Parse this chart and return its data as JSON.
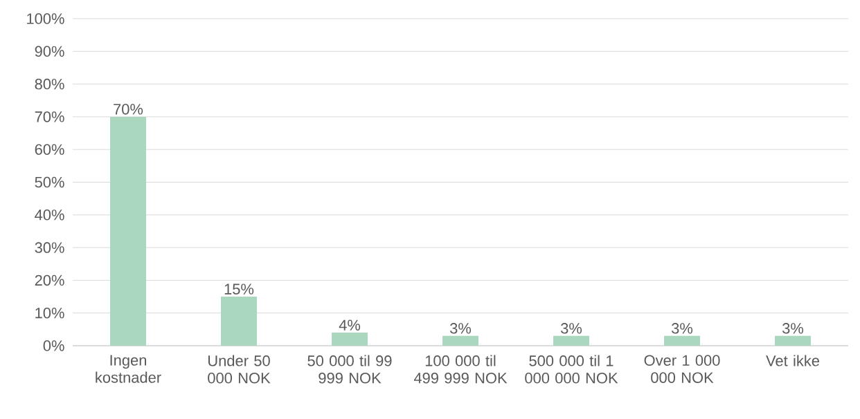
{
  "chart_data": {
    "type": "bar",
    "categories": [
      "Ingen kostnader",
      "Under 50 000 NOK",
      "50 000 til 99 999 NOK",
      "100 000 til 499 999 NOK",
      "500 000 til 1 000 000 NOK",
      "Over 1 000 000 NOK",
      "Vet ikke"
    ],
    "values": [
      70,
      15,
      4,
      3,
      3,
      3,
      3
    ],
    "value_labels": [
      "70%",
      "15%",
      "4%",
      "3%",
      "3%",
      "3%",
      "3%"
    ],
    "color": "#a9d8bf",
    "ylim": [
      0,
      100
    ],
    "yticks": [
      {
        "value": 0,
        "label": "0%"
      },
      {
        "value": 10,
        "label": "10%"
      },
      {
        "value": 20,
        "label": "20%"
      },
      {
        "value": 30,
        "label": "30%"
      },
      {
        "value": 40,
        "label": "40%"
      },
      {
        "value": 50,
        "label": "50%"
      },
      {
        "value": 60,
        "label": "60%"
      },
      {
        "value": 70,
        "label": "70%"
      },
      {
        "value": 80,
        "label": "80%"
      },
      {
        "value": 90,
        "label": "90%"
      },
      {
        "value": 100,
        "label": "100%"
      }
    ],
    "grid": "y"
  }
}
